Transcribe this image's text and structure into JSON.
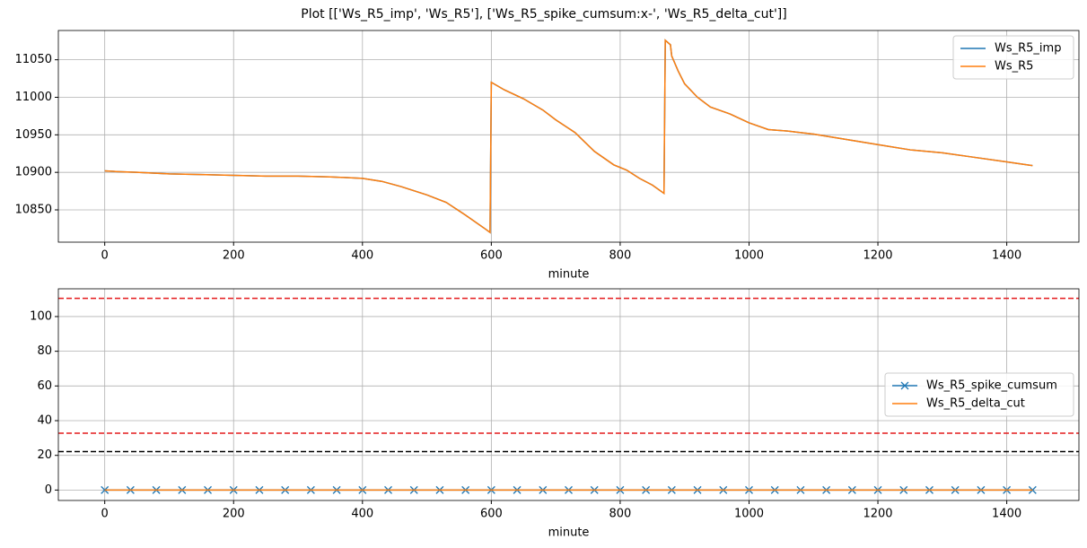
{
  "title": "Plot [['Ws_R5_imp', 'Ws_R5'], ['Ws_R5_spike_cumsum:x-', 'Ws_R5_delta_cut']]",
  "chart_data": [
    {
      "type": "line",
      "xlabel": "minute",
      "grid": true,
      "legend": "upper right",
      "xlim": [
        -72,
        1512
      ],
      "xticks": [
        0,
        200,
        400,
        600,
        800,
        1000,
        1200,
        1400
      ],
      "ylim": [
        10807,
        11089
      ],
      "yticks": [
        10850,
        10900,
        10950,
        11000,
        11050
      ],
      "x": [
        0,
        20,
        50,
        100,
        150,
        200,
        250,
        300,
        350,
        400,
        430,
        460,
        500,
        530,
        560,
        590,
        598,
        600,
        620,
        650,
        680,
        700,
        730,
        760,
        790,
        810,
        830,
        850,
        868,
        870,
        878,
        880,
        890,
        900,
        920,
        940,
        970,
        1000,
        1030,
        1060,
        1100,
        1150,
        1200,
        1250,
        1300,
        1350,
        1400,
        1440
      ],
      "series": [
        {
          "name": "Ws_R5_imp",
          "color": "#1f77b4",
          "values": [
            10902,
            10901,
            10900,
            10898,
            10897,
            10896,
            10895,
            10895,
            10894,
            10892,
            10888,
            10881,
            10870,
            10860,
            10843,
            10825,
            10820,
            11020,
            11010,
            10998,
            10983,
            10970,
            10953,
            10928,
            10910,
            10903,
            10892,
            10883,
            10872,
            11076,
            11070,
            11055,
            11035,
            11018,
            11000,
            10987,
            10978,
            10966,
            10957,
            10955,
            10951,
            10944,
            10937,
            10930,
            10926,
            10920,
            10914,
            10909
          ]
        },
        {
          "name": "Ws_R5",
          "color": "#ff7f0e",
          "values": [
            10902,
            10901,
            10900,
            10898,
            10897,
            10896,
            10895,
            10895,
            10894,
            10892,
            10888,
            10881,
            10870,
            10860,
            10843,
            10825,
            10820,
            11020,
            11010,
            10998,
            10983,
            10970,
            10953,
            10928,
            10910,
            10903,
            10892,
            10883,
            10872,
            11076,
            11070,
            11055,
            11035,
            11018,
            11000,
            10987,
            10978,
            10966,
            10957,
            10955,
            10951,
            10944,
            10937,
            10930,
            10926,
            10920,
            10914,
            10909
          ]
        }
      ]
    },
    {
      "type": "line",
      "xlabel": "minute",
      "grid": true,
      "legend": "center right",
      "xlim": [
        -72,
        1512
      ],
      "xticks": [
        0,
        200,
        400,
        600,
        800,
        1000,
        1200,
        1400
      ],
      "ylim": [
        -6,
        116
      ],
      "yticks": [
        0,
        20,
        40,
        60,
        80,
        100
      ],
      "x": [
        0,
        40,
        80,
        120,
        160,
        200,
        240,
        280,
        320,
        360,
        400,
        440,
        480,
        520,
        560,
        600,
        640,
        680,
        720,
        760,
        800,
        840,
        880,
        920,
        960,
        1000,
        1040,
        1080,
        1120,
        1160,
        1200,
        1240,
        1280,
        1320,
        1360,
        1400,
        1440
      ],
      "series": [
        {
          "name": "Ws_R5_spike_cumsum",
          "color": "#1f77b4",
          "marker": "x",
          "values": [
            0,
            0,
            0,
            0,
            0,
            0,
            0,
            0,
            0,
            0,
            0,
            0,
            0,
            0,
            0,
            0,
            0,
            0,
            0,
            0,
            0,
            0,
            0,
            0,
            0,
            0,
            0,
            0,
            0,
            0,
            0,
            0,
            0,
            0,
            0,
            0,
            0
          ]
        },
        {
          "name": "Ws_R5_delta_cut",
          "color": "#ff7f0e",
          "values": [
            0,
            0,
            0,
            0,
            0,
            0,
            0,
            0,
            0,
            0,
            0,
            0,
            0,
            0,
            0,
            0,
            0,
            0,
            0,
            0,
            0,
            0,
            0,
            0,
            0,
            0,
            0,
            0,
            0,
            0,
            0,
            0,
            0,
            0,
            0,
            0,
            0
          ]
        }
      ],
      "reference_lines": [
        {
          "value": 110.5,
          "color": "#e41a1c"
        },
        {
          "value": 32.8,
          "color": "#e41a1c"
        },
        {
          "value": 22.2,
          "color": "#000000"
        }
      ]
    }
  ]
}
